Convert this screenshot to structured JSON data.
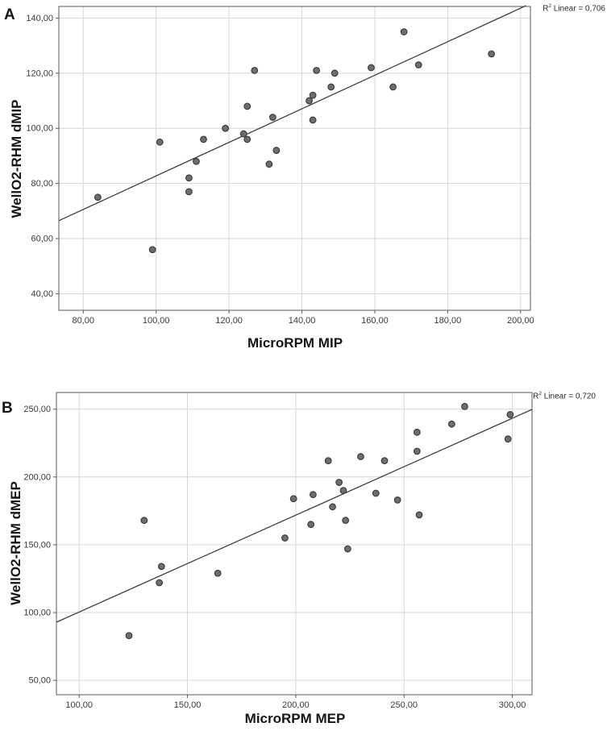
{
  "figure": {
    "background": "#ffffff",
    "panel_count": 2
  },
  "colors": {
    "point_fill": "#6e6e6e",
    "point_stroke": "#3c3c3c",
    "grid": "#d6d6d6",
    "frame": "#595959",
    "fit_line": "#3f3f3f",
    "tick_text": "#3a3a3a",
    "title_text": "#161616"
  },
  "chart_data": [
    {
      "type": "scatter",
      "panel_label": "A",
      "xlabel": "MicroRPM MIP",
      "ylabel": "WellO2-RHM dMIP",
      "r2": {
        "base": "R",
        "sup": "2",
        "rest": " Linear = 0,706"
      },
      "r2_value": 0.706,
      "xlim": [
        73.3,
        202.7
      ],
      "ylim": [
        34.0,
        144.2
      ],
      "xticks": [
        80,
        100,
        120,
        140,
        160,
        180,
        200
      ],
      "yticks": [
        40,
        60,
        80,
        100,
        120,
        140
      ],
      "tick_decimal": "comma",
      "tick_decimals": 2,
      "grid": true,
      "legend": "none",
      "point_radius": 3.8,
      "points": [
        [
          84,
          75
        ],
        [
          99,
          56
        ],
        [
          101,
          95
        ],
        [
          109,
          77
        ],
        [
          109,
          82
        ],
        [
          111,
          88
        ],
        [
          113,
          96
        ],
        [
          119,
          100
        ],
        [
          124,
          98
        ],
        [
          125,
          96
        ],
        [
          125,
          108
        ],
        [
          127,
          121
        ],
        [
          131,
          87
        ],
        [
          132,
          104
        ],
        [
          133,
          92
        ],
        [
          142,
          110
        ],
        [
          143,
          103
        ],
        [
          143,
          112
        ],
        [
          144,
          121
        ],
        [
          148,
          115
        ],
        [
          149,
          120
        ],
        [
          159,
          122
        ],
        [
          165,
          115
        ],
        [
          168,
          135
        ],
        [
          172,
          123
        ],
        [
          192,
          127
        ]
      ],
      "fit_line": {
        "x1": 73.3,
        "y1": 66.5,
        "x2": 201.5,
        "y2": 144.5
      }
    },
    {
      "type": "scatter",
      "panel_label": "B",
      "xlabel": "MicroRPM MEP",
      "ylabel": "WellO2-RHM dMEP",
      "r2": {
        "base": "R",
        "sup": "2",
        "rest": " Linear = 0,720"
      },
      "r2_value": 0.72,
      "xlim": [
        89.5,
        309.1
      ],
      "ylim": [
        39.4,
        262.3
      ],
      "xticks": [
        100,
        150,
        200,
        250,
        300
      ],
      "yticks": [
        50,
        100,
        150,
        200,
        250
      ],
      "tick_decimal": "comma",
      "tick_decimals": 2,
      "grid": true,
      "legend": "none",
      "point_radius": 3.8,
      "points": [
        [
          123,
          83
        ],
        [
          130,
          168
        ],
        [
          137,
          122
        ],
        [
          138,
          134
        ],
        [
          164,
          129
        ],
        [
          195,
          155
        ],
        [
          199,
          184
        ],
        [
          207,
          165
        ],
        [
          208,
          187
        ],
        [
          215,
          212
        ],
        [
          217,
          178
        ],
        [
          220,
          196
        ],
        [
          222,
          190
        ],
        [
          223,
          168
        ],
        [
          224,
          147
        ],
        [
          230,
          215
        ],
        [
          237,
          188
        ],
        [
          241,
          212
        ],
        [
          247,
          183
        ],
        [
          256,
          219
        ],
        [
          256,
          233
        ],
        [
          257,
          172
        ],
        [
          272,
          239
        ],
        [
          278,
          252
        ],
        [
          298,
          228
        ],
        [
          299,
          246
        ]
      ],
      "fit_line": {
        "x1": 89.5,
        "y1": 92.9,
        "x2": 309.1,
        "y2": 249.8
      }
    }
  ]
}
